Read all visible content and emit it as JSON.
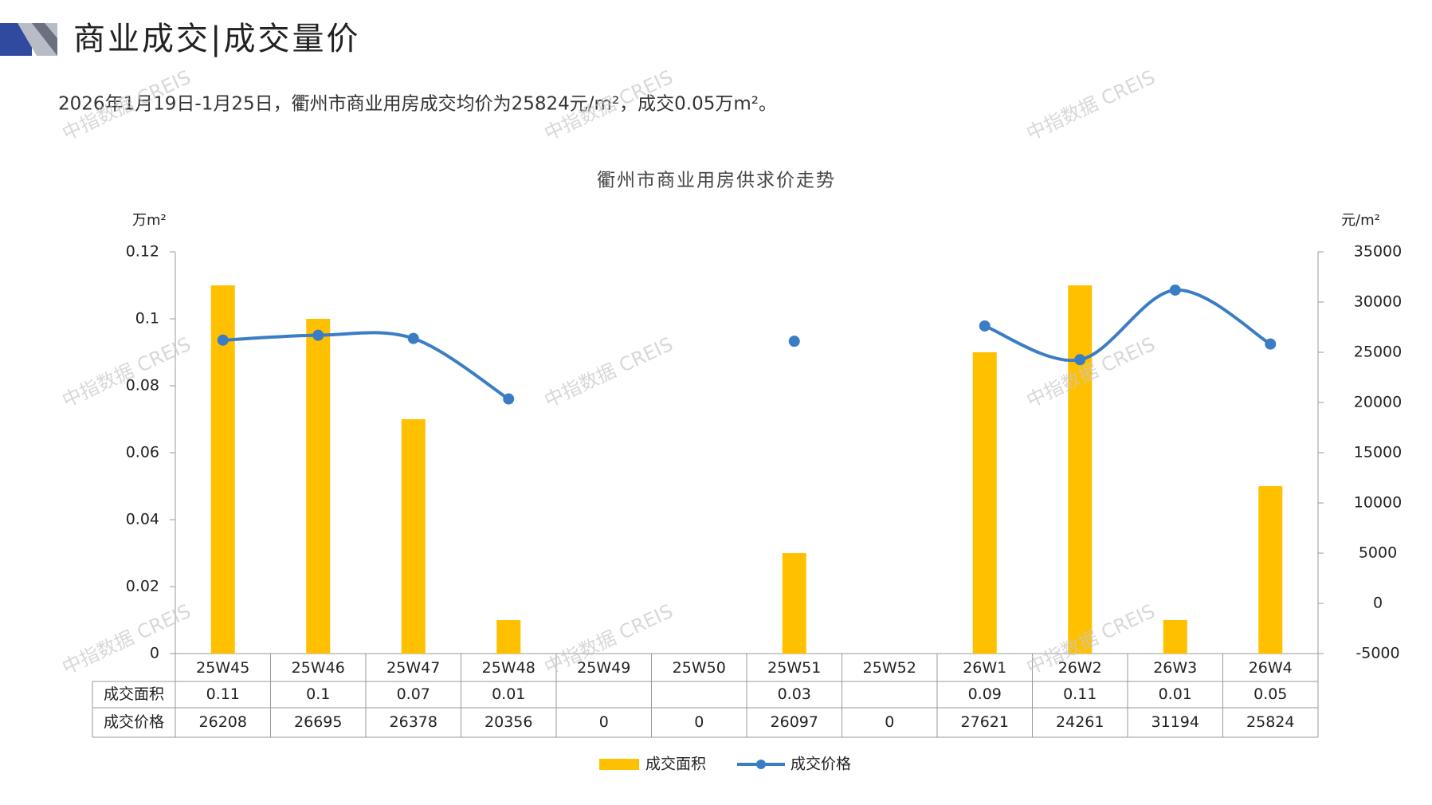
{
  "header": {
    "title": "商业成交|成交量价",
    "subtitle": "2026年1月19日-1月25日，衢州市商业用房成交均价为25824元/m²，成交0.05万m²。",
    "watermark": "中指数据 CREIS"
  },
  "chart_data": {
    "type": "bar",
    "title": "衢州市商业用房供求价走势",
    "ylabel": "万m²",
    "y2label": "元/m²",
    "categories": [
      "25W45",
      "25W46",
      "25W47",
      "25W48",
      "25W49",
      "25W50",
      "25W51",
      "25W52",
      "26W1",
      "26W2",
      "26W3",
      "26W4"
    ],
    "series": [
      {
        "name": "成交面积",
        "type": "bar",
        "color": "#ffc000",
        "values": [
          0.11,
          0.1,
          0.07,
          0.01,
          null,
          null,
          0.03,
          null,
          0.09,
          0.11,
          0.01,
          0.05
        ]
      },
      {
        "name": "成交价格",
        "type": "line",
        "axis": "y2",
        "color": "#3b7dc4",
        "smooth": true,
        "zero_as_gap": true,
        "values": [
          26208,
          26695,
          26378,
          20356,
          0,
          0,
          26097,
          0,
          27621,
          24261,
          31194,
          25824
        ]
      }
    ],
    "ylim": [
      0,
      0.12
    ],
    "yticks": [
      0,
      0.02,
      0.04,
      0.06,
      0.08,
      0.1,
      0.12
    ],
    "y2lim": [
      -5000,
      35000
    ],
    "y2ticks": [
      -5000,
      0,
      5000,
      10000,
      15000,
      20000,
      25000,
      30000,
      35000
    ],
    "data_table": true,
    "legend": "bottom"
  }
}
